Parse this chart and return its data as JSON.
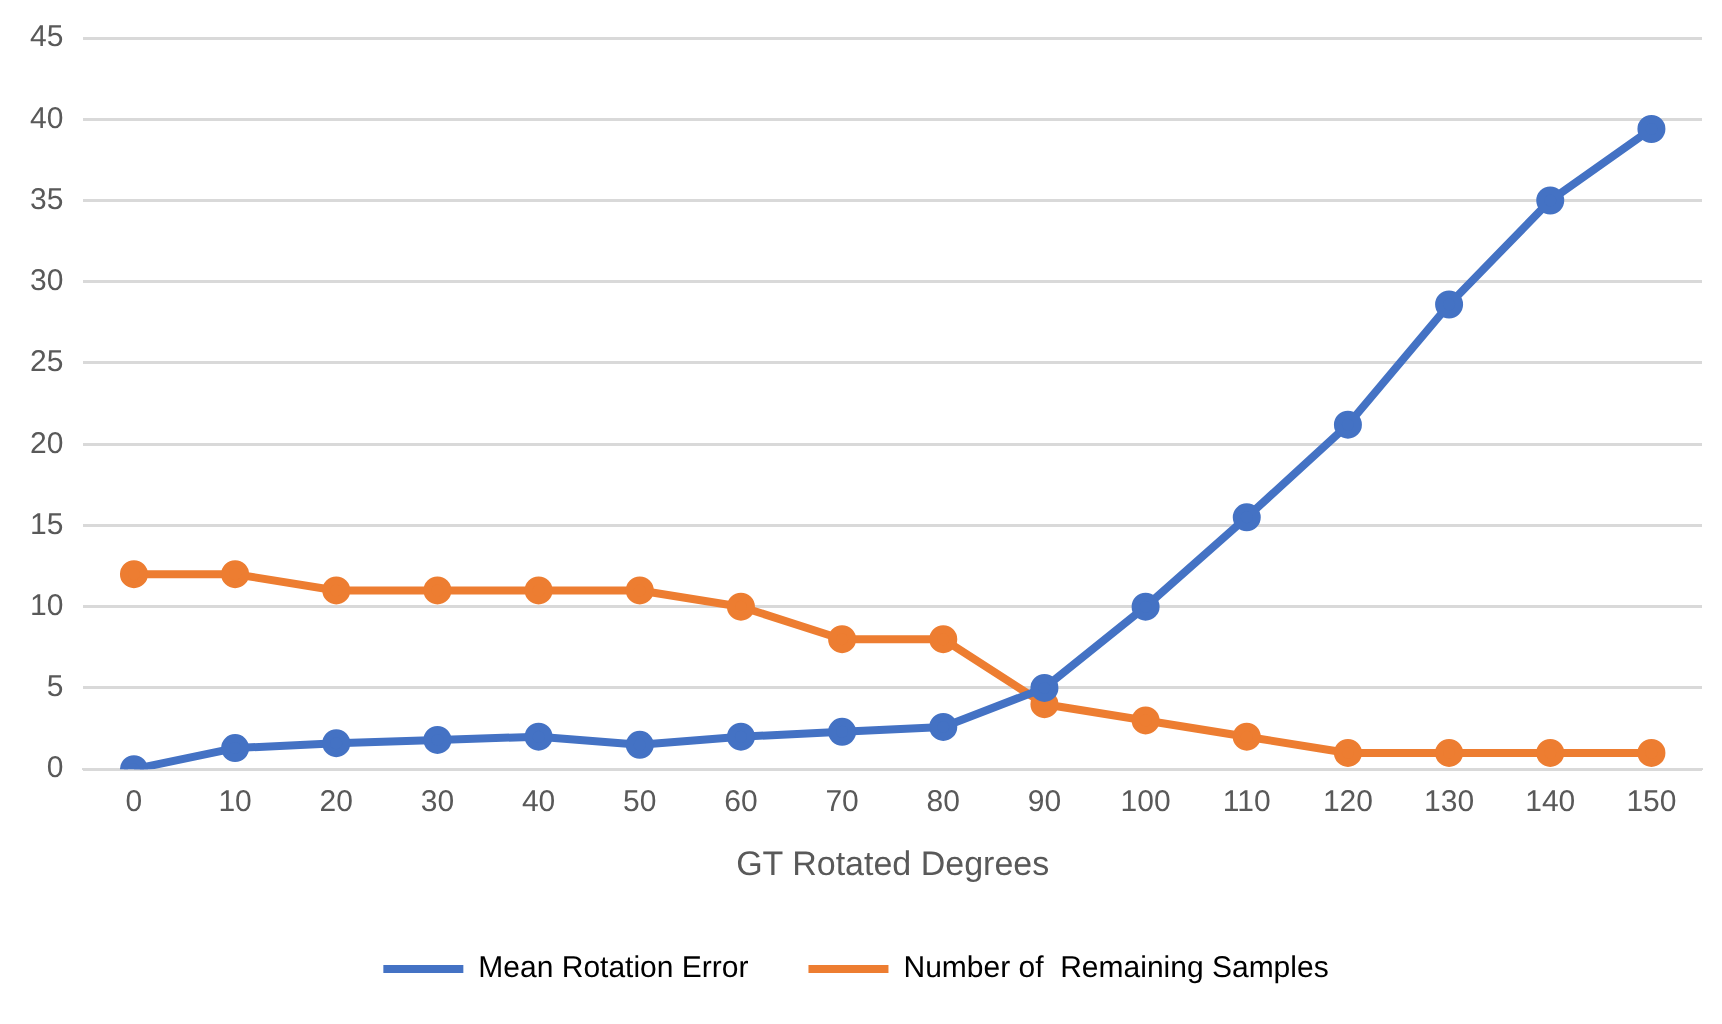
{
  "chart_data": {
    "type": "line",
    "xlabel": "GT Rotated Degrees",
    "categories": [
      "0",
      "10",
      "20",
      "30",
      "40",
      "50",
      "60",
      "70",
      "80",
      "90",
      "100",
      "110",
      "120",
      "130",
      "140",
      "150"
    ],
    "series": [
      {
        "name": "Mean Rotation Error",
        "color": "#4472c4",
        "values": [
          0,
          1.3,
          1.6,
          1.8,
          2.0,
          1.5,
          2.0,
          2.3,
          2.6,
          5,
          10,
          15.5,
          21.2,
          28.6,
          35,
          39.4
        ]
      },
      {
        "name": "Number of  Remaining Samples",
        "color": "#ed7d31",
        "values": [
          12,
          12,
          11,
          11,
          11,
          11,
          10,
          8,
          8,
          4,
          3,
          2,
          1,
          1,
          1,
          1
        ]
      }
    ],
    "ylim": [
      0,
      45
    ],
    "yticks": [
      0,
      5,
      10,
      15,
      20,
      25,
      30,
      35,
      40,
      45
    ],
    "grid": "y",
    "legend": "bottom",
    "marker": "circle",
    "line_style": "solid"
  }
}
